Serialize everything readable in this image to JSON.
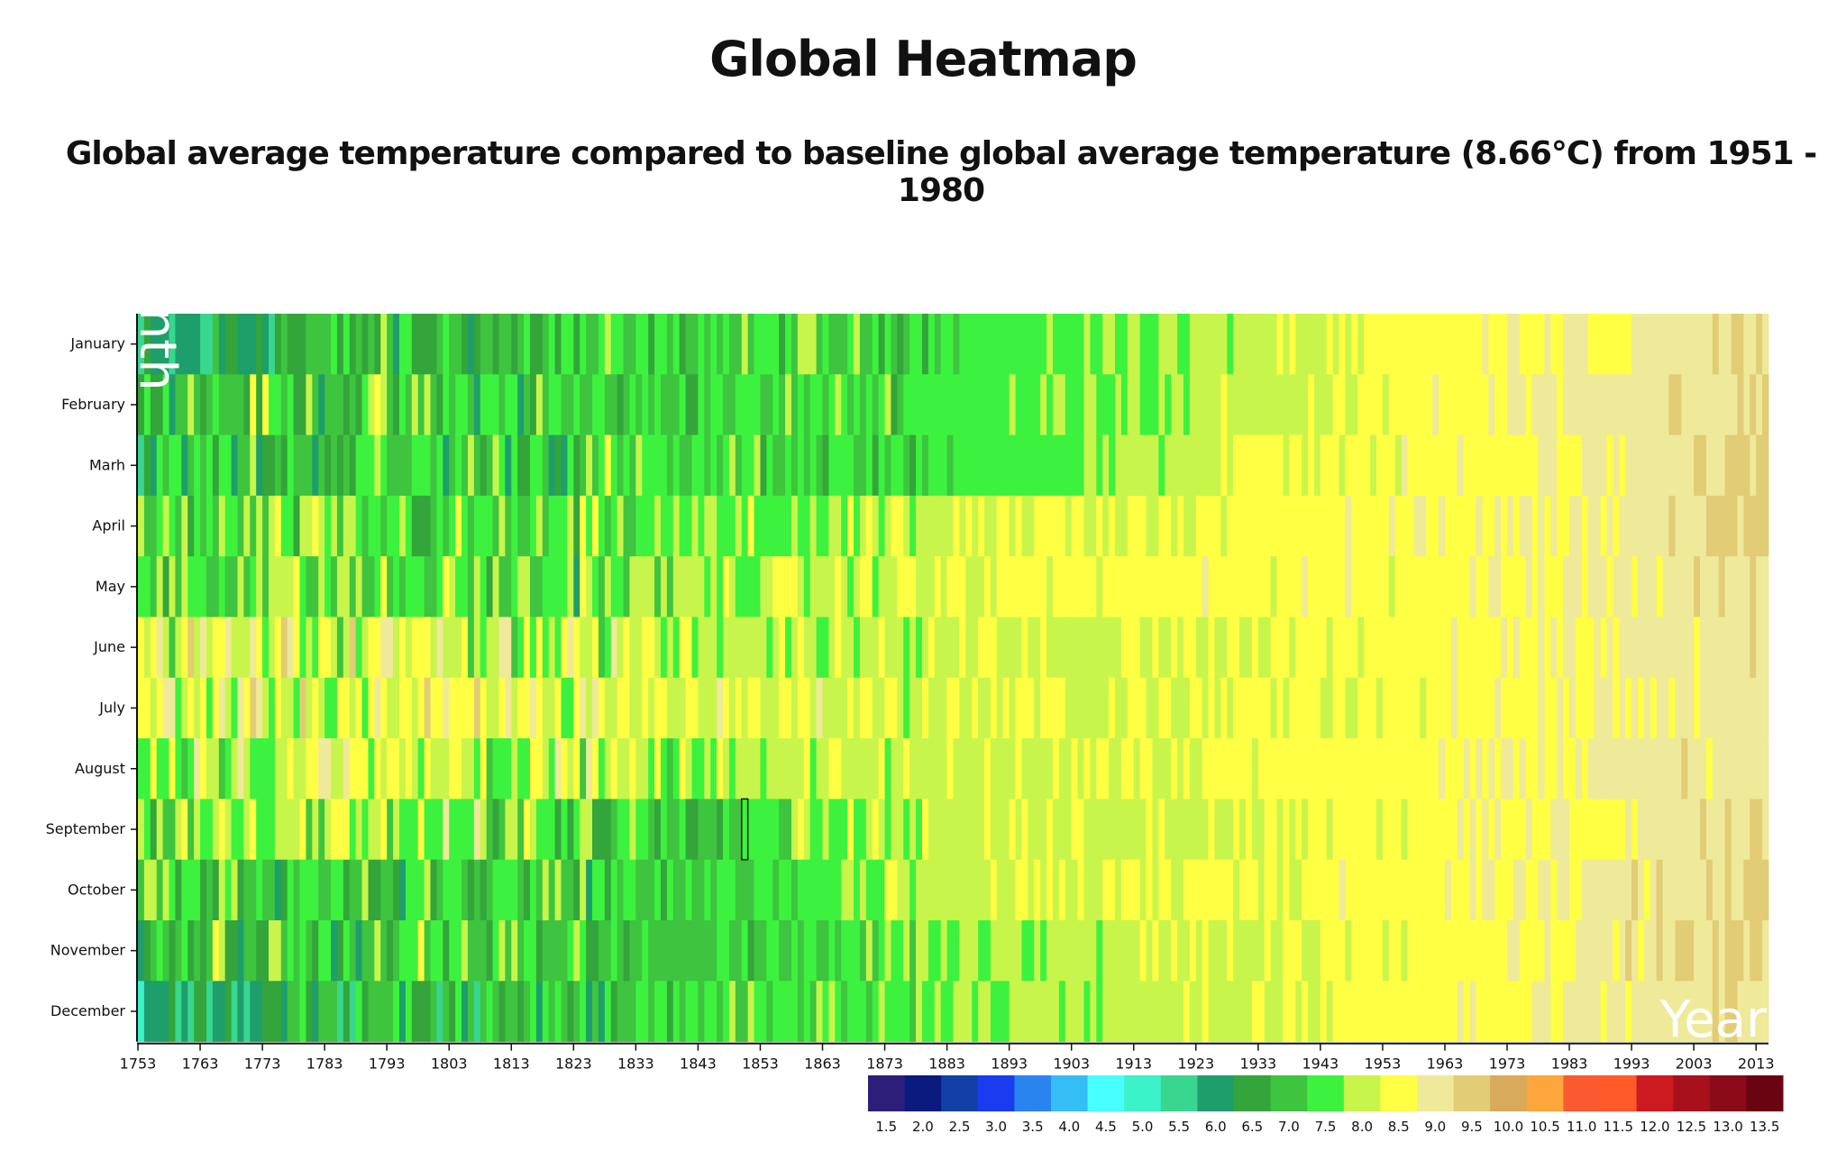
{
  "title": "Global Heatmap",
  "subtitle": "Global average temperature compared to baseline global average temperature (8.66°C) from 1951 - 1980",
  "chart_data": {
    "type": "heatmap",
    "title": "Global Heatmap",
    "subtitle": "Global average temperature compared to baseline global average temperature (8.66°C) from 1951 - 1980",
    "xlabel": "Year",
    "ylabel": "Month",
    "x_range": [
      1753,
      2015
    ],
    "x_ticks": [
      1753,
      1763,
      1773,
      1783,
      1793,
      1803,
      1813,
      1823,
      1833,
      1843,
      1853,
      1863,
      1873,
      1883,
      1893,
      1903,
      1913,
      1923,
      1933,
      1943,
      1953,
      1963,
      1973,
      1983,
      1993,
      2003,
      2013
    ],
    "months": [
      "January",
      "February",
      "Marh",
      "April",
      "May",
      "June",
      "July",
      "August",
      "September",
      "October",
      "November",
      "December"
    ],
    "legend": {
      "thresholds": [
        1.5,
        2.0,
        2.5,
        3.0,
        3.5,
        4.0,
        4.5,
        5.0,
        5.5,
        6.0,
        6.5,
        7.0,
        7.5,
        8.0,
        8.5,
        9.0,
        9.5,
        10.0,
        10.5,
        11.0,
        11.5,
        12.0,
        12.5,
        13.0,
        13.5
      ],
      "labels": [
        "1.5",
        "2.0",
        "2.5",
        "3.0",
        "3.5",
        "4.0",
        "4.5",
        "5.0",
        "5.5",
        "6.0",
        "6.5",
        "7.0",
        "7.5",
        "8.0",
        "8.5",
        "9.0",
        "9.5",
        "10.0",
        "10.5",
        "11.0",
        "11.5",
        "12.0",
        "12.5",
        "13.0",
        "13.5"
      ],
      "colors": [
        "#2d1e7a",
        "#0a1a7e",
        "#133fa8",
        "#1a3cf0",
        "#2a84f0",
        "#35bdf5",
        "#47ffff",
        "#3cf2c8",
        "#38d68e",
        "#1e9e6a",
        "#33a53a",
        "#3ec43e",
        "#3cf23e",
        "#c8f54b",
        "#ffff44",
        "#efe99a",
        "#e2cc76",
        "#d8aa5c",
        "#fca63c",
        "#fb5a30",
        "#ff5a2a",
        "#cc1a20",
        "#a8101c",
        "#8a0a18",
        "#6a0410"
      ]
    },
    "month_profile": [
      {
        "month": "January",
        "values_by_year": [
          [
            1753,
            5.5
          ],
          [
            1780,
            6.8
          ],
          [
            1810,
            6.9
          ],
          [
            1840,
            7.2
          ],
          [
            1870,
            7.3
          ],
          [
            1900,
            7.6
          ],
          [
            1930,
            8.0
          ],
          [
            1960,
            8.4
          ],
          [
            1990,
            8.8
          ],
          [
            2013,
            9.4
          ]
        ]
      },
      {
        "month": "February",
        "values_by_year": [
          [
            1753,
            7.0
          ],
          [
            1780,
            7.3
          ],
          [
            1810,
            7.0
          ],
          [
            1840,
            7.2
          ],
          [
            1870,
            7.4
          ],
          [
            1900,
            7.7
          ],
          [
            1930,
            8.0
          ],
          [
            1960,
            8.5
          ],
          [
            1990,
            9.0
          ],
          [
            2013,
            9.3
          ]
        ]
      },
      {
        "month": "Marh",
        "values_by_year": [
          [
            1753,
            6.7
          ],
          [
            1780,
            7.0
          ],
          [
            1810,
            7.1
          ],
          [
            1840,
            7.3
          ],
          [
            1870,
            7.2
          ],
          [
            1900,
            7.6
          ],
          [
            1930,
            8.3
          ],
          [
            1960,
            8.5
          ],
          [
            1990,
            8.9
          ],
          [
            2013,
            9.4
          ]
        ]
      },
      {
        "month": "April",
        "values_by_year": [
          [
            1753,
            7.3
          ],
          [
            1780,
            7.4
          ],
          [
            1810,
            7.2
          ],
          [
            1840,
            7.6
          ],
          [
            1870,
            7.9
          ],
          [
            1900,
            8.3
          ],
          [
            1930,
            8.4
          ],
          [
            1960,
            8.6
          ],
          [
            1990,
            8.9
          ],
          [
            2013,
            9.4
          ]
        ]
      },
      {
        "month": "May",
        "values_by_year": [
          [
            1753,
            7.6
          ],
          [
            1780,
            7.6
          ],
          [
            1810,
            7.4
          ],
          [
            1840,
            7.7
          ],
          [
            1870,
            8.1
          ],
          [
            1900,
            8.4
          ],
          [
            1930,
            8.5
          ],
          [
            1960,
            8.6
          ],
          [
            1990,
            8.9
          ],
          [
            2013,
            9.2
          ]
        ]
      },
      {
        "month": "June",
        "values_by_year": [
          [
            1753,
            8.2
          ],
          [
            1780,
            8.3
          ],
          [
            1810,
            8.2
          ],
          [
            1840,
            7.9
          ],
          [
            1870,
            8.1
          ],
          [
            1900,
            8.2
          ],
          [
            1930,
            8.3
          ],
          [
            1960,
            8.5
          ],
          [
            1990,
            8.8
          ],
          [
            2013,
            9.1
          ]
        ]
      },
      {
        "month": "July",
        "values_by_year": [
          [
            1753,
            8.4
          ],
          [
            1780,
            8.4
          ],
          [
            1810,
            8.3
          ],
          [
            1840,
            8.3
          ],
          [
            1870,
            8.2
          ],
          [
            1900,
            8.2
          ],
          [
            1930,
            8.3
          ],
          [
            1960,
            8.5
          ],
          [
            1990,
            8.8
          ],
          [
            2013,
            9.1
          ]
        ]
      },
      {
        "month": "August",
        "values_by_year": [
          [
            1753,
            8.0
          ],
          [
            1780,
            8.3
          ],
          [
            1810,
            8.1
          ],
          [
            1840,
            7.8
          ],
          [
            1870,
            8.0
          ],
          [
            1900,
            8.2
          ],
          [
            1930,
            8.4
          ],
          [
            1960,
            8.5
          ],
          [
            1990,
            8.8
          ],
          [
            2013,
            9.1
          ]
        ]
      },
      {
        "month": "September",
        "values_by_year": [
          [
            1753,
            7.6
          ],
          [
            1780,
            7.8
          ],
          [
            1810,
            7.6
          ],
          [
            1840,
            7.2
          ],
          [
            1870,
            7.9
          ],
          [
            1900,
            8.1
          ],
          [
            1930,
            8.3
          ],
          [
            1960,
            8.5
          ],
          [
            1990,
            8.8
          ],
          [
            2013,
            9.2
          ]
        ]
      },
      {
        "month": "October",
        "values_by_year": [
          [
            1753,
            7.3
          ],
          [
            1780,
            7.3
          ],
          [
            1810,
            7.1
          ],
          [
            1840,
            7.1
          ],
          [
            1870,
            7.7
          ],
          [
            1900,
            8.3
          ],
          [
            1930,
            8.3
          ],
          [
            1960,
            8.5
          ],
          [
            1990,
            8.9
          ],
          [
            2013,
            9.5
          ]
        ]
      },
      {
        "month": "November",
        "values_by_year": [
          [
            1753,
            6.9
          ],
          [
            1780,
            7.1
          ],
          [
            1810,
            7.1
          ],
          [
            1840,
            7.0
          ],
          [
            1870,
            7.4
          ],
          [
            1900,
            8.0
          ],
          [
            1930,
            8.2
          ],
          [
            1960,
            8.5
          ],
          [
            1990,
            8.9
          ],
          [
            2013,
            9.4
          ]
        ]
      },
      {
        "month": "December",
        "values_by_year": [
          [
            1753,
            5.6
          ],
          [
            1780,
            6.6
          ],
          [
            1810,
            6.8
          ],
          [
            1840,
            7.2
          ],
          [
            1870,
            7.5
          ],
          [
            1900,
            7.9
          ],
          [
            1930,
            8.2
          ],
          [
            1960,
            8.5
          ],
          [
            1990,
            8.9
          ],
          [
            2013,
            9.2
          ]
        ]
      }
    ],
    "highlighted_cell": {
      "year": 1850,
      "month": "September"
    }
  }
}
